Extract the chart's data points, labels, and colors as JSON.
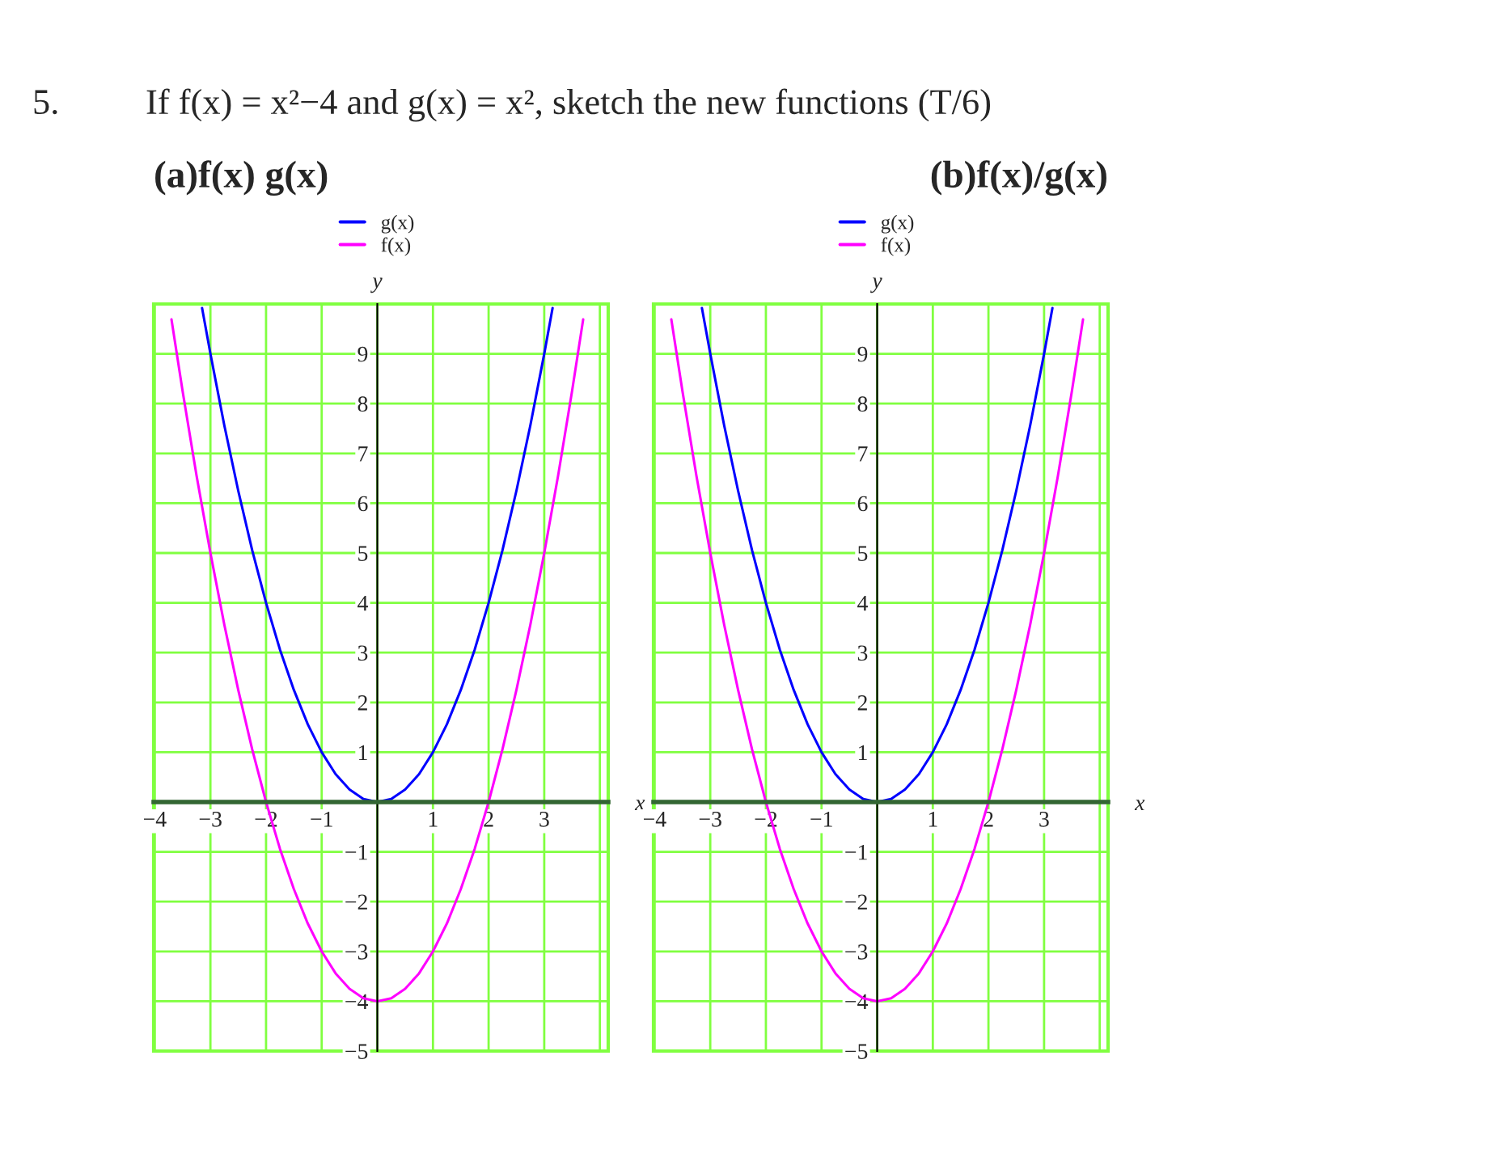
{
  "chart_data": [
    {
      "type": "line",
      "title": "(a)f(x) g(x)",
      "annotations": [
        "5.",
        "If f(x) = x²−4 and g(x) = x², sketch the new functions (T/6)"
      ],
      "xlabel": "x",
      "ylabel": "y",
      "series": [
        {
          "name": "g(x)",
          "color": "#0000ff",
          "x": [
            -3.15,
            -3,
            -2.75,
            -2.5,
            -2.25,
            -2,
            -1.75,
            -1.5,
            -1.25,
            -1,
            -0.75,
            -0.5,
            -0.25,
            0,
            0.25,
            0.5,
            0.75,
            1,
            1.25,
            1.5,
            1.75,
            2,
            2.25,
            2.5,
            2.75,
            3,
            3.15
          ],
          "values": [
            9.92,
            9,
            7.56,
            6.25,
            5.06,
            4,
            3.06,
            2.25,
            1.56,
            1,
            0.56,
            0.25,
            0.06,
            0,
            0.06,
            0.25,
            0.56,
            1,
            1.56,
            2.25,
            3.06,
            4,
            5.06,
            6.25,
            7.56,
            9,
            9.92
          ]
        },
        {
          "name": "f(x)",
          "color": "#ff00ff",
          "x": [
            -3.7,
            -3.5,
            -3.25,
            -3,
            -2.75,
            -2.5,
            -2.25,
            -2,
            -1.75,
            -1.5,
            -1.25,
            -1,
            -0.75,
            -0.5,
            -0.25,
            0,
            0.25,
            0.5,
            0.75,
            1,
            1.25,
            1.5,
            1.75,
            2,
            2.25,
            2.5,
            2.75,
            3,
            3.25,
            3.5,
            3.7
          ],
          "values": [
            9.69,
            8.25,
            6.56,
            5,
            3.56,
            2.25,
            1.06,
            0,
            -0.94,
            -1.75,
            -2.44,
            -3,
            -3.44,
            -3.75,
            -3.94,
            -4,
            -3.94,
            -3.75,
            -3.44,
            -3,
            -2.44,
            -1.75,
            -0.94,
            0,
            1.06,
            2.25,
            3.56,
            5,
            6.56,
            8.25,
            9.69
          ]
        }
      ],
      "xlim": [
        -4.02,
        4.15
      ],
      "ylim": [
        -5,
        10
      ],
      "xticks": [
        {
          "value": -4,
          "label": "−4"
        },
        {
          "value": -3,
          "label": "−3"
        },
        {
          "value": -2,
          "label": "−2"
        },
        {
          "value": -1,
          "label": "−1"
        },
        1,
        2,
        3
      ],
      "yticks": [
        {
          "value": -5,
          "label": "−5"
        },
        {
          "value": -4,
          "label": "−4"
        },
        {
          "value": -3,
          "label": "−3"
        },
        {
          "value": -2,
          "label": "−2"
        },
        {
          "value": -1,
          "label": "−1"
        },
        1,
        2,
        3,
        4,
        5,
        6,
        7,
        8,
        9
      ],
      "grid": true,
      "legend": "top"
    },
    {
      "type": "line",
      "title": "(b)f(x)/g(x)",
      "xlabel": "x",
      "ylabel": "y",
      "series": [
        {
          "name": "g(x)",
          "color": "#0000ff",
          "x": [
            -3.15,
            -3,
            -2.75,
            -2.5,
            -2.25,
            -2,
            -1.75,
            -1.5,
            -1.25,
            -1,
            -0.75,
            -0.5,
            -0.25,
            0,
            0.25,
            0.5,
            0.75,
            1,
            1.25,
            1.5,
            1.75,
            2,
            2.25,
            2.5,
            2.75,
            3,
            3.15
          ],
          "values": [
            9.92,
            9,
            7.56,
            6.25,
            5.06,
            4,
            3.06,
            2.25,
            1.56,
            1,
            0.56,
            0.25,
            0.06,
            0,
            0.06,
            0.25,
            0.56,
            1,
            1.56,
            2.25,
            3.06,
            4,
            5.06,
            6.25,
            7.56,
            9,
            9.92
          ]
        },
        {
          "name": "f(x)",
          "color": "#ff00ff",
          "x": [
            -3.7,
            -3.5,
            -3.25,
            -3,
            -2.75,
            -2.5,
            -2.25,
            -2,
            -1.75,
            -1.5,
            -1.25,
            -1,
            -0.75,
            -0.5,
            -0.25,
            0,
            0.25,
            0.5,
            0.75,
            1,
            1.25,
            1.5,
            1.75,
            2,
            2.25,
            2.5,
            2.75,
            3,
            3.25,
            3.5,
            3.7
          ],
          "values": [
            9.69,
            8.25,
            6.56,
            5,
            3.56,
            2.25,
            1.06,
            0,
            -0.94,
            -1.75,
            -2.44,
            -3,
            -3.44,
            -3.75,
            -3.94,
            -4,
            -3.94,
            -3.75,
            -3.44,
            -3,
            -2.44,
            -1.75,
            -0.94,
            0,
            1.06,
            2.25,
            3.56,
            5,
            6.56,
            8.25,
            9.69
          ]
        }
      ],
      "xlim": [
        -4.02,
        4.15
      ],
      "ylim": [
        -5,
        10
      ],
      "xticks": [
        {
          "value": -4,
          "label": "−4"
        },
        {
          "value": -3,
          "label": "−3"
        },
        {
          "value": -2,
          "label": "−2"
        },
        {
          "value": -1,
          "label": "−1"
        },
        1,
        2,
        3
      ],
      "yticks": [
        {
          "value": -5,
          "label": "−5"
        },
        {
          "value": -4,
          "label": "−4"
        },
        {
          "value": -3,
          "label": "−3"
        },
        {
          "value": -2,
          "label": "−2"
        },
        {
          "value": -1,
          "label": "−1"
        },
        1,
        2,
        3,
        4,
        5,
        6,
        7,
        8,
        9
      ],
      "grid": true,
      "legend": "top"
    }
  ]
}
